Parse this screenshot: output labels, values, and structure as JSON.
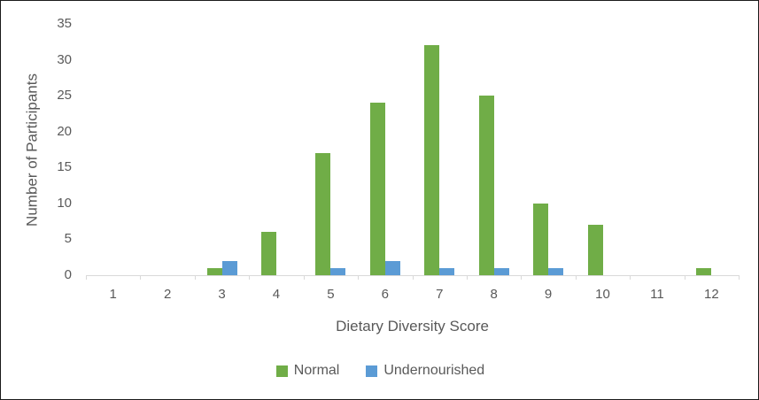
{
  "chart_data": {
    "type": "bar",
    "categories": [
      "1",
      "2",
      "3",
      "4",
      "5",
      "6",
      "7",
      "8",
      "9",
      "10",
      "11",
      "12"
    ],
    "series": [
      {
        "name": "Normal",
        "color": "#70AD47",
        "values": [
          0,
          0,
          1,
          6,
          17,
          24,
          32,
          25,
          10,
          7,
          0,
          1
        ]
      },
      {
        "name": "Undernourished",
        "color": "#5B9BD5",
        "values": [
          0,
          0,
          2,
          0,
          1,
          2,
          1,
          1,
          1,
          0,
          0,
          0
        ]
      }
    ],
    "xlabel": "Dietary Diversity Score",
    "ylabel": "Number of Participants",
    "ylim": [
      0,
      35
    ],
    "y_ticks": [
      0,
      5,
      10,
      15,
      20,
      25,
      30,
      35
    ],
    "grid": "off",
    "legend_position": "bottom"
  },
  "colors": {
    "axis_line": "#d9d9d9",
    "text": "#595959",
    "background": "#ffffff",
    "border": "#1a1a1a"
  }
}
